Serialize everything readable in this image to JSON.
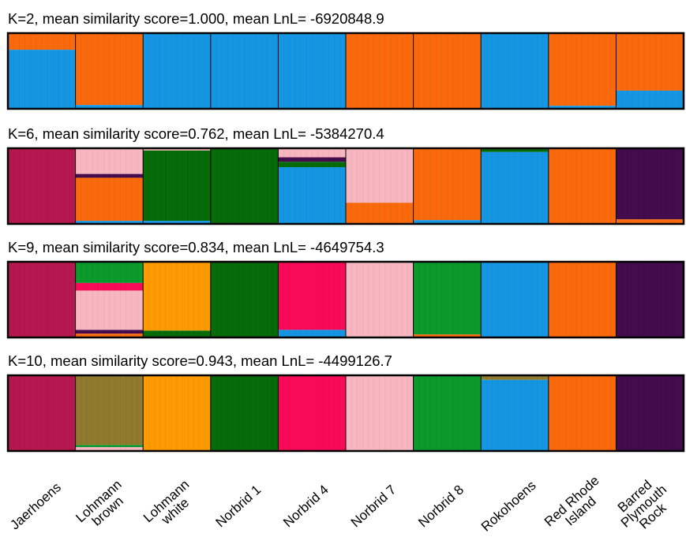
{
  "chart_data": {
    "type": "bar",
    "subtype": "stacked-admixture",
    "populations": [
      "Jaerhoens",
      "Lohmann brown",
      "Lohmann white",
      "Norbrid 1",
      "Norbrid 4",
      "Norbrid 7",
      "Norbrid 8",
      "Rokohoens",
      "Red Rhode Island",
      "Barred Plymouth Rock"
    ],
    "population_labels": [
      [
        "Jaerhoens"
      ],
      [
        "Lohmann",
        "brown"
      ],
      [
        "Lohmann",
        "white"
      ],
      [
        "Norbrid 1"
      ],
      [
        "Norbrid 4"
      ],
      [
        "Norbrid 7"
      ],
      [
        "Norbrid 8"
      ],
      [
        "Rokohoens"
      ],
      [
        "Red Rhode",
        "Island"
      ],
      [
        "Barred",
        "Plymouth",
        "Rock"
      ]
    ],
    "ylim": [
      0,
      1
    ],
    "colors": {
      "orange": "#fa6a0c",
      "blue": "#1596e2",
      "maroon": "#b5174f",
      "pink": "#f8b7c0",
      "darkgreen": "#066b08",
      "purple": "#440c4d",
      "green": "#0b9a2c",
      "amber": "#fe9a02",
      "crimson": "#f90a58",
      "olive": "#8f7a2d"
    },
    "panels": [
      {
        "title": "K=2, mean similarity score=1.000, mean LnL= -6920848.9",
        "proportions": [
          [
            [
              "orange",
              0.22
            ],
            [
              "blue",
              0.78
            ]
          ],
          [
            [
              "orange",
              0.95
            ],
            [
              "blue",
              0.05
            ]
          ],
          [
            [
              "blue",
              1.0
            ]
          ],
          [
            [
              "blue",
              1.0
            ]
          ],
          [
            [
              "blue",
              1.0
            ]
          ],
          [
            [
              "orange",
              1.0
            ]
          ],
          [
            [
              "orange",
              1.0
            ]
          ],
          [
            [
              "blue",
              1.0
            ]
          ],
          [
            [
              "orange",
              0.96
            ],
            [
              "blue",
              0.04
            ]
          ],
          [
            [
              "orange",
              0.76
            ],
            [
              "blue",
              0.24
            ]
          ]
        ]
      },
      {
        "title": "K=6, mean similarity score=0.762, mean LnL= -5384270.4",
        "proportions": [
          [
            [
              "maroon",
              1.0
            ]
          ],
          [
            [
              "pink",
              0.34
            ],
            [
              "purple",
              0.05
            ],
            [
              "orange",
              0.57
            ],
            [
              "blue",
              0.04
            ]
          ],
          [
            [
              "pink",
              0.03
            ],
            [
              "darkgreen",
              0.93
            ],
            [
              "blue",
              0.04
            ]
          ],
          [
            [
              "darkgreen",
              1.0
            ]
          ],
          [
            [
              "pink",
              0.12
            ],
            [
              "purple",
              0.06
            ],
            [
              "darkgreen",
              0.07
            ],
            [
              "blue",
              0.75
            ]
          ],
          [
            [
              "pink",
              0.72
            ],
            [
              "orange",
              0.28
            ]
          ],
          [
            [
              "orange",
              0.95
            ],
            [
              "blue",
              0.05
            ]
          ],
          [
            [
              "darkgreen",
              0.05
            ],
            [
              "blue",
              0.95
            ]
          ],
          [
            [
              "orange",
              1.0
            ]
          ],
          [
            [
              "purple",
              0.94
            ],
            [
              "orange",
              0.06
            ]
          ]
        ]
      },
      {
        "title": "K=9, mean similarity score=0.834, mean LnL= -4649754.3",
        "proportions": [
          [
            [
              "maroon",
              1.0
            ]
          ],
          [
            [
              "green",
              0.28
            ],
            [
              "crimson",
              0.1
            ],
            [
              "pink",
              0.52
            ],
            [
              "purple",
              0.05
            ],
            [
              "orange",
              0.05
            ]
          ],
          [
            [
              "amber",
              0.91
            ],
            [
              "darkgreen",
              0.09
            ]
          ],
          [
            [
              "darkgreen",
              1.0
            ]
          ],
          [
            [
              "crimson",
              0.9
            ],
            [
              "blue",
              0.1
            ]
          ],
          [
            [
              "pink",
              1.0
            ]
          ],
          [
            [
              "green",
              0.96
            ],
            [
              "orange",
              0.04
            ]
          ],
          [
            [
              "blue",
              1.0
            ]
          ],
          [
            [
              "orange",
              1.0
            ]
          ],
          [
            [
              "purple",
              1.0
            ]
          ]
        ]
      },
      {
        "title": "K=10, mean similarity score=0.943, mean LnL= -4499126.7",
        "proportions": [
          [
            [
              "maroon",
              1.0
            ]
          ],
          [
            [
              "olive",
              0.92
            ],
            [
              "green",
              0.03
            ],
            [
              "pink",
              0.05
            ]
          ],
          [
            [
              "amber",
              1.0
            ]
          ],
          [
            [
              "darkgreen",
              1.0
            ]
          ],
          [
            [
              "crimson",
              1.0
            ]
          ],
          [
            [
              "pink",
              1.0
            ]
          ],
          [
            [
              "green",
              1.0
            ]
          ],
          [
            [
              "olive",
              0.06
            ],
            [
              "blue",
              0.94
            ]
          ],
          [
            [
              "orange",
              1.0
            ]
          ],
          [
            [
              "purple",
              1.0
            ]
          ]
        ]
      }
    ]
  }
}
